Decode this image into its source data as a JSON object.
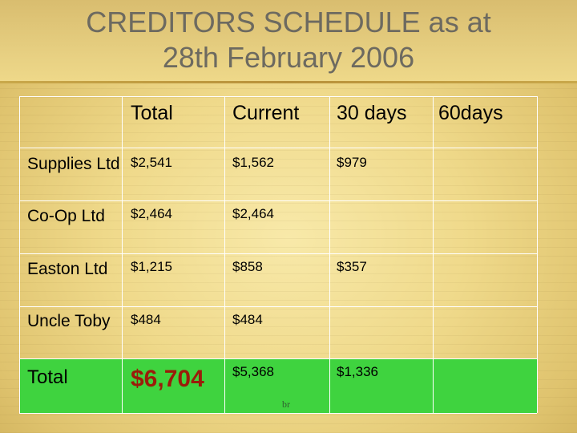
{
  "slide": {
    "title_line1": "CREDITORS SCHEDULE as at",
    "title_line2": "28th February 2006"
  },
  "table": {
    "headers": [
      "",
      "Total",
      "Current",
      "30 days",
      "60days"
    ],
    "rows": [
      {
        "label": "Supplies Ltd",
        "total": "$2,541",
        "current": "$1,562",
        "d30": "$979",
        "d60": ""
      },
      {
        "label": "Co-Op Ltd",
        "total": "$2,464",
        "current": "$2,464",
        "d30": "",
        "d60": ""
      },
      {
        "label": "Easton Ltd",
        "total": "$1,215",
        "current": "$858",
        "d30": "$357",
        "d60": ""
      },
      {
        "label": "Uncle Toby",
        "total": "$484",
        "current": "$484",
        "d30": "",
        "d60": ""
      }
    ],
    "total_row": {
      "label": "Total",
      "total": "$6,704",
      "current": "$5,368",
      "d30": "$1,336",
      "d60": ""
    },
    "note": "br"
  },
  "colors": {
    "total_highlight": "#3fd33f",
    "grand_total_text": "#9b1c0a",
    "title_text": "#6d6a60"
  }
}
